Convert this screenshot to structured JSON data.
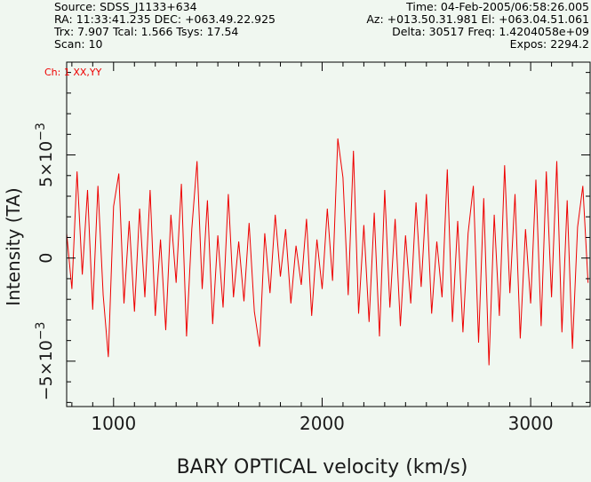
{
  "header": {
    "source": "Source: SDSS_J1133+634",
    "time": "Time: 04-Feb-2005/06:58:26.005",
    "ra_dec": "RA: 11:33:41.235 DEC: +063.49.22.925",
    "az_el": "Az: +013.50.31.981 El: +063.04.51.061",
    "trx": "Trx: 7.907 Tcal: 1.566 Tsys: 17.54",
    "delta": "Delta: 30517 Freq: 1.4204058e+09",
    "scan": "Scan: 10",
    "expos": "Expos: 2294.2"
  },
  "channel_label": "Ch: 1 XX,YY",
  "colors": {
    "trace": "#ee0000",
    "axis": "#000000",
    "background": "#f0f7f0"
  },
  "chart_data": {
    "type": "line",
    "title": "",
    "xlabel": "BARY OPTICAL velocity (km/s)",
    "ylabel": "Intensity (TA)",
    "xlim": [
      775,
      3285
    ],
    "ylim": [
      -0.0072,
      0.0095
    ],
    "x_ticks": [
      1000,
      2000,
      3000
    ],
    "x_tick_labels": [
      "1000",
      "2000",
      "3000"
    ],
    "y_ticks": [
      -0.005,
      0,
      0.005
    ],
    "y_tick_labels": [
      "-5x10^-3",
      "0",
      "5x10^-3"
    ],
    "grid": false,
    "series": [
      {
        "x": [
          775,
          800,
          825,
          850,
          875,
          900,
          925,
          950,
          975,
          1000,
          1025,
          1050,
          1075,
          1100,
          1125,
          1150,
          1175,
          1200,
          1225,
          1250,
          1275,
          1300,
          1325,
          1350,
          1375,
          1400,
          1425,
          1450,
          1475,
          1500,
          1525,
          1550,
          1575,
          1600,
          1625,
          1650,
          1675,
          1700,
          1725,
          1750,
          1775,
          1800,
          1825,
          1850,
          1875,
          1900,
          1925,
          1950,
          1975,
          2000,
          2025,
          2050,
          2075,
          2100,
          2125,
          2150,
          2175,
          2200,
          2225,
          2250,
          2275,
          2300,
          2325,
          2350,
          2375,
          2400,
          2425,
          2450,
          2475,
          2500,
          2525,
          2550,
          2575,
          2600,
          2625,
          2650,
          2675,
          2700,
          2725,
          2750,
          2775,
          2800,
          2825,
          2850,
          2875,
          2900,
          2925,
          2950,
          2975,
          3000,
          3025,
          3050,
          3075,
          3100,
          3125,
          3150,
          3175,
          3200,
          3225,
          3250,
          3275
        ],
        "values": [
          0.0012,
          -0.0015,
          0.0042,
          -0.0008,
          0.0033,
          -0.0025,
          0.0035,
          -0.0018,
          -0.0048,
          0.0025,
          0.0041,
          -0.0022,
          0.0018,
          -0.0026,
          0.0024,
          -0.0019,
          0.0033,
          -0.0028,
          0.0009,
          -0.0035,
          0.0021,
          -0.0012,
          0.0036,
          -0.0038,
          0.0014,
          0.0047,
          -0.0015,
          0.0028,
          -0.0032,
          0.0011,
          -0.0024,
          0.0031,
          -0.0019,
          0.0008,
          -0.0021,
          0.0017,
          -0.0026,
          -0.0043,
          0.0012,
          -0.0017,
          0.0021,
          -0.0009,
          0.0014,
          -0.0022,
          0.0006,
          -0.0013,
          0.0019,
          -0.0028,
          0.0009,
          -0.0015,
          0.0024,
          -0.0011,
          0.0058,
          0.0039,
          -0.0018,
          0.0052,
          -0.0027,
          0.0016,
          -0.0031,
          0.0022,
          -0.0038,
          0.0033,
          -0.0024,
          0.0019,
          -0.0033,
          0.0011,
          -0.0022,
          0.0027,
          -0.0014,
          0.0031,
          -0.0027,
          0.0008,
          -0.0019,
          0.0043,
          -0.0031,
          0.0018,
          -0.0036,
          0.0012,
          0.0035,
          -0.0041,
          0.0029,
          -0.0052,
          0.0021,
          -0.0028,
          0.0045,
          -0.0017,
          0.0031,
          -0.0039,
          0.0014,
          -0.0022,
          0.0038,
          -0.0033,
          0.0042,
          -0.0019,
          0.0047,
          -0.0036,
          0.0028,
          -0.0044,
          0.0015,
          0.0035,
          -0.0012
        ]
      }
    ]
  }
}
